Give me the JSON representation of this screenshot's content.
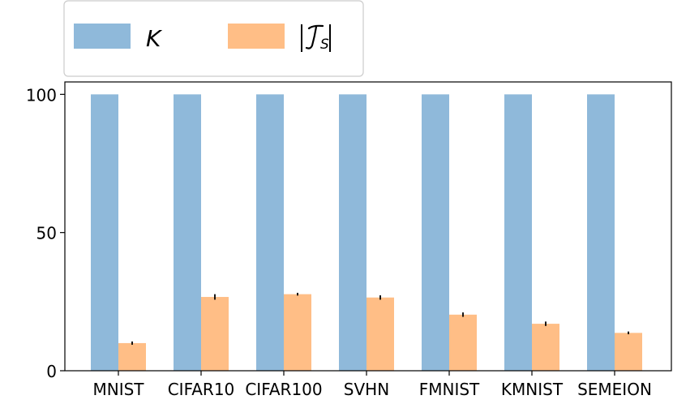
{
  "chart_data": {
    "type": "bar",
    "categories": [
      "MNIST",
      "CIFAR10",
      "CIFAR100",
      "SVHN",
      "FMNIST",
      "KMNIST",
      "SEMEION"
    ],
    "series": [
      {
        "name": "K",
        "color": "#8fb9da",
        "values": [
          100,
          100,
          100,
          100,
          100,
          100,
          100
        ],
        "errors": [
          0,
          0,
          0,
          0,
          0,
          0,
          0
        ]
      },
      {
        "name": "|T_S|",
        "color": "#ffbe86",
        "values": [
          10,
          26.7,
          27.7,
          26.5,
          20.3,
          17,
          13.7
        ],
        "errors": [
          0.6,
          1.0,
          0.5,
          0.8,
          0.8,
          0.8,
          0.5
        ]
      }
    ],
    "yticks": [
      "0",
      "50",
      "100"
    ],
    "ylim": [
      0,
      104.5
    ],
    "grid": false,
    "legend_position": "top-left, above plot"
  }
}
